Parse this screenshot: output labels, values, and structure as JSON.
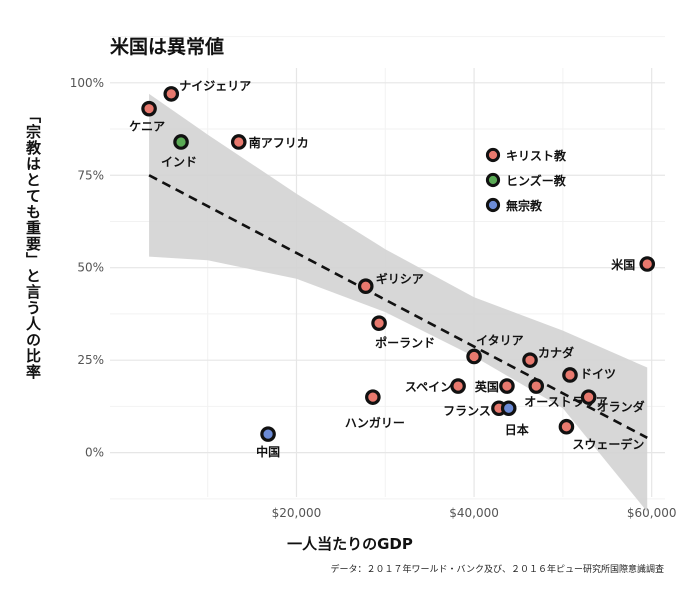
{
  "title": "米国は異常値",
  "ylabel": "「宗教はとても重要」と言う人の比率",
  "xlabel": "一人当たりのGDP",
  "source": "データ：２０１７年ワールド・バンク及び、２０１６年ピュー研究所国際意識調査",
  "chart_data": {
    "type": "scatter",
    "title": "米国は異常値",
    "xlabel": "一人当たりのGDP",
    "ylabel": "「宗教はとても重要」と言う人の比率",
    "xlim": [
      -1000,
      61500
    ],
    "ylim": [
      -0.12,
      1.04
    ],
    "x_ticks": [
      20000,
      40000,
      60000
    ],
    "x_tick_labels": [
      "$20,000",
      "$40,000",
      "$60,000"
    ],
    "y_ticks": [
      0,
      0.25,
      0.5,
      0.75,
      1.0
    ],
    "y_tick_labels": [
      "0%",
      "25%",
      "50%",
      "75%",
      "100%"
    ],
    "grid": true,
    "legend_position": "upper-right",
    "series": [
      {
        "name": "キリスト教",
        "color": "#e8796e"
      },
      {
        "name": "ヒンズー教",
        "color": "#5aaa55"
      },
      {
        "name": "無宗教",
        "color": "#6c8bd6"
      }
    ],
    "points": [
      {
        "label": "ナイジェリア",
        "x": 5900,
        "y": 0.97,
        "series": "キリスト教"
      },
      {
        "label": "ケニア",
        "x": 3400,
        "y": 0.93,
        "series": "キリスト教"
      },
      {
        "label": "インド",
        "x": 7000,
        "y": 0.84,
        "series": "ヒンズー教"
      },
      {
        "label": "南アフリカ",
        "x": 13500,
        "y": 0.84,
        "series": "キリスト教"
      },
      {
        "label": "米国",
        "x": 59500,
        "y": 0.51,
        "series": "キリスト教"
      },
      {
        "label": "ギリシア",
        "x": 27800,
        "y": 0.45,
        "series": "キリスト教"
      },
      {
        "label": "ポーランド",
        "x": 29300,
        "y": 0.35,
        "series": "キリスト教"
      },
      {
        "label": "イタリア",
        "x": 40000,
        "y": 0.26,
        "series": "キリスト教"
      },
      {
        "label": "カナダ",
        "x": 46300,
        "y": 0.25,
        "series": "キリスト教"
      },
      {
        "label": "ドイツ",
        "x": 50800,
        "y": 0.21,
        "series": "キリスト教"
      },
      {
        "label": "スペイン",
        "x": 38200,
        "y": 0.18,
        "series": "キリスト教"
      },
      {
        "label": "英国",
        "x": 43700,
        "y": 0.18,
        "series": "キリスト教"
      },
      {
        "label": "オーストラリア",
        "x": 47000,
        "y": 0.18,
        "series": "キリスト教"
      },
      {
        "label": "オランダ",
        "x": 52900,
        "y": 0.15,
        "series": "キリスト教"
      },
      {
        "label": "ハンガリー",
        "x": 28600,
        "y": 0.15,
        "series": "キリスト教"
      },
      {
        "label": "フランス",
        "x": 42800,
        "y": 0.12,
        "series": "キリスト教"
      },
      {
        "label": "日本",
        "x": 43900,
        "y": 0.12,
        "series": "無宗教"
      },
      {
        "label": "スウェーデン",
        "x": 50400,
        "y": 0.07,
        "series": "キリスト教"
      },
      {
        "label": "中国",
        "x": 16800,
        "y": 0.05,
        "series": "無宗教"
      }
    ],
    "trend": {
      "x": [
        3400,
        59500
      ],
      "y": [
        0.75,
        0.04
      ],
      "style": "dashed"
    },
    "confidence_band": {
      "x": [
        3400,
        10000,
        20000,
        30000,
        40000,
        50000,
        59500
      ],
      "upper": [
        0.97,
        0.86,
        0.7,
        0.55,
        0.42,
        0.33,
        0.23
      ],
      "lower": [
        0.53,
        0.52,
        0.47,
        0.38,
        0.26,
        0.12,
        -0.16
      ]
    }
  }
}
